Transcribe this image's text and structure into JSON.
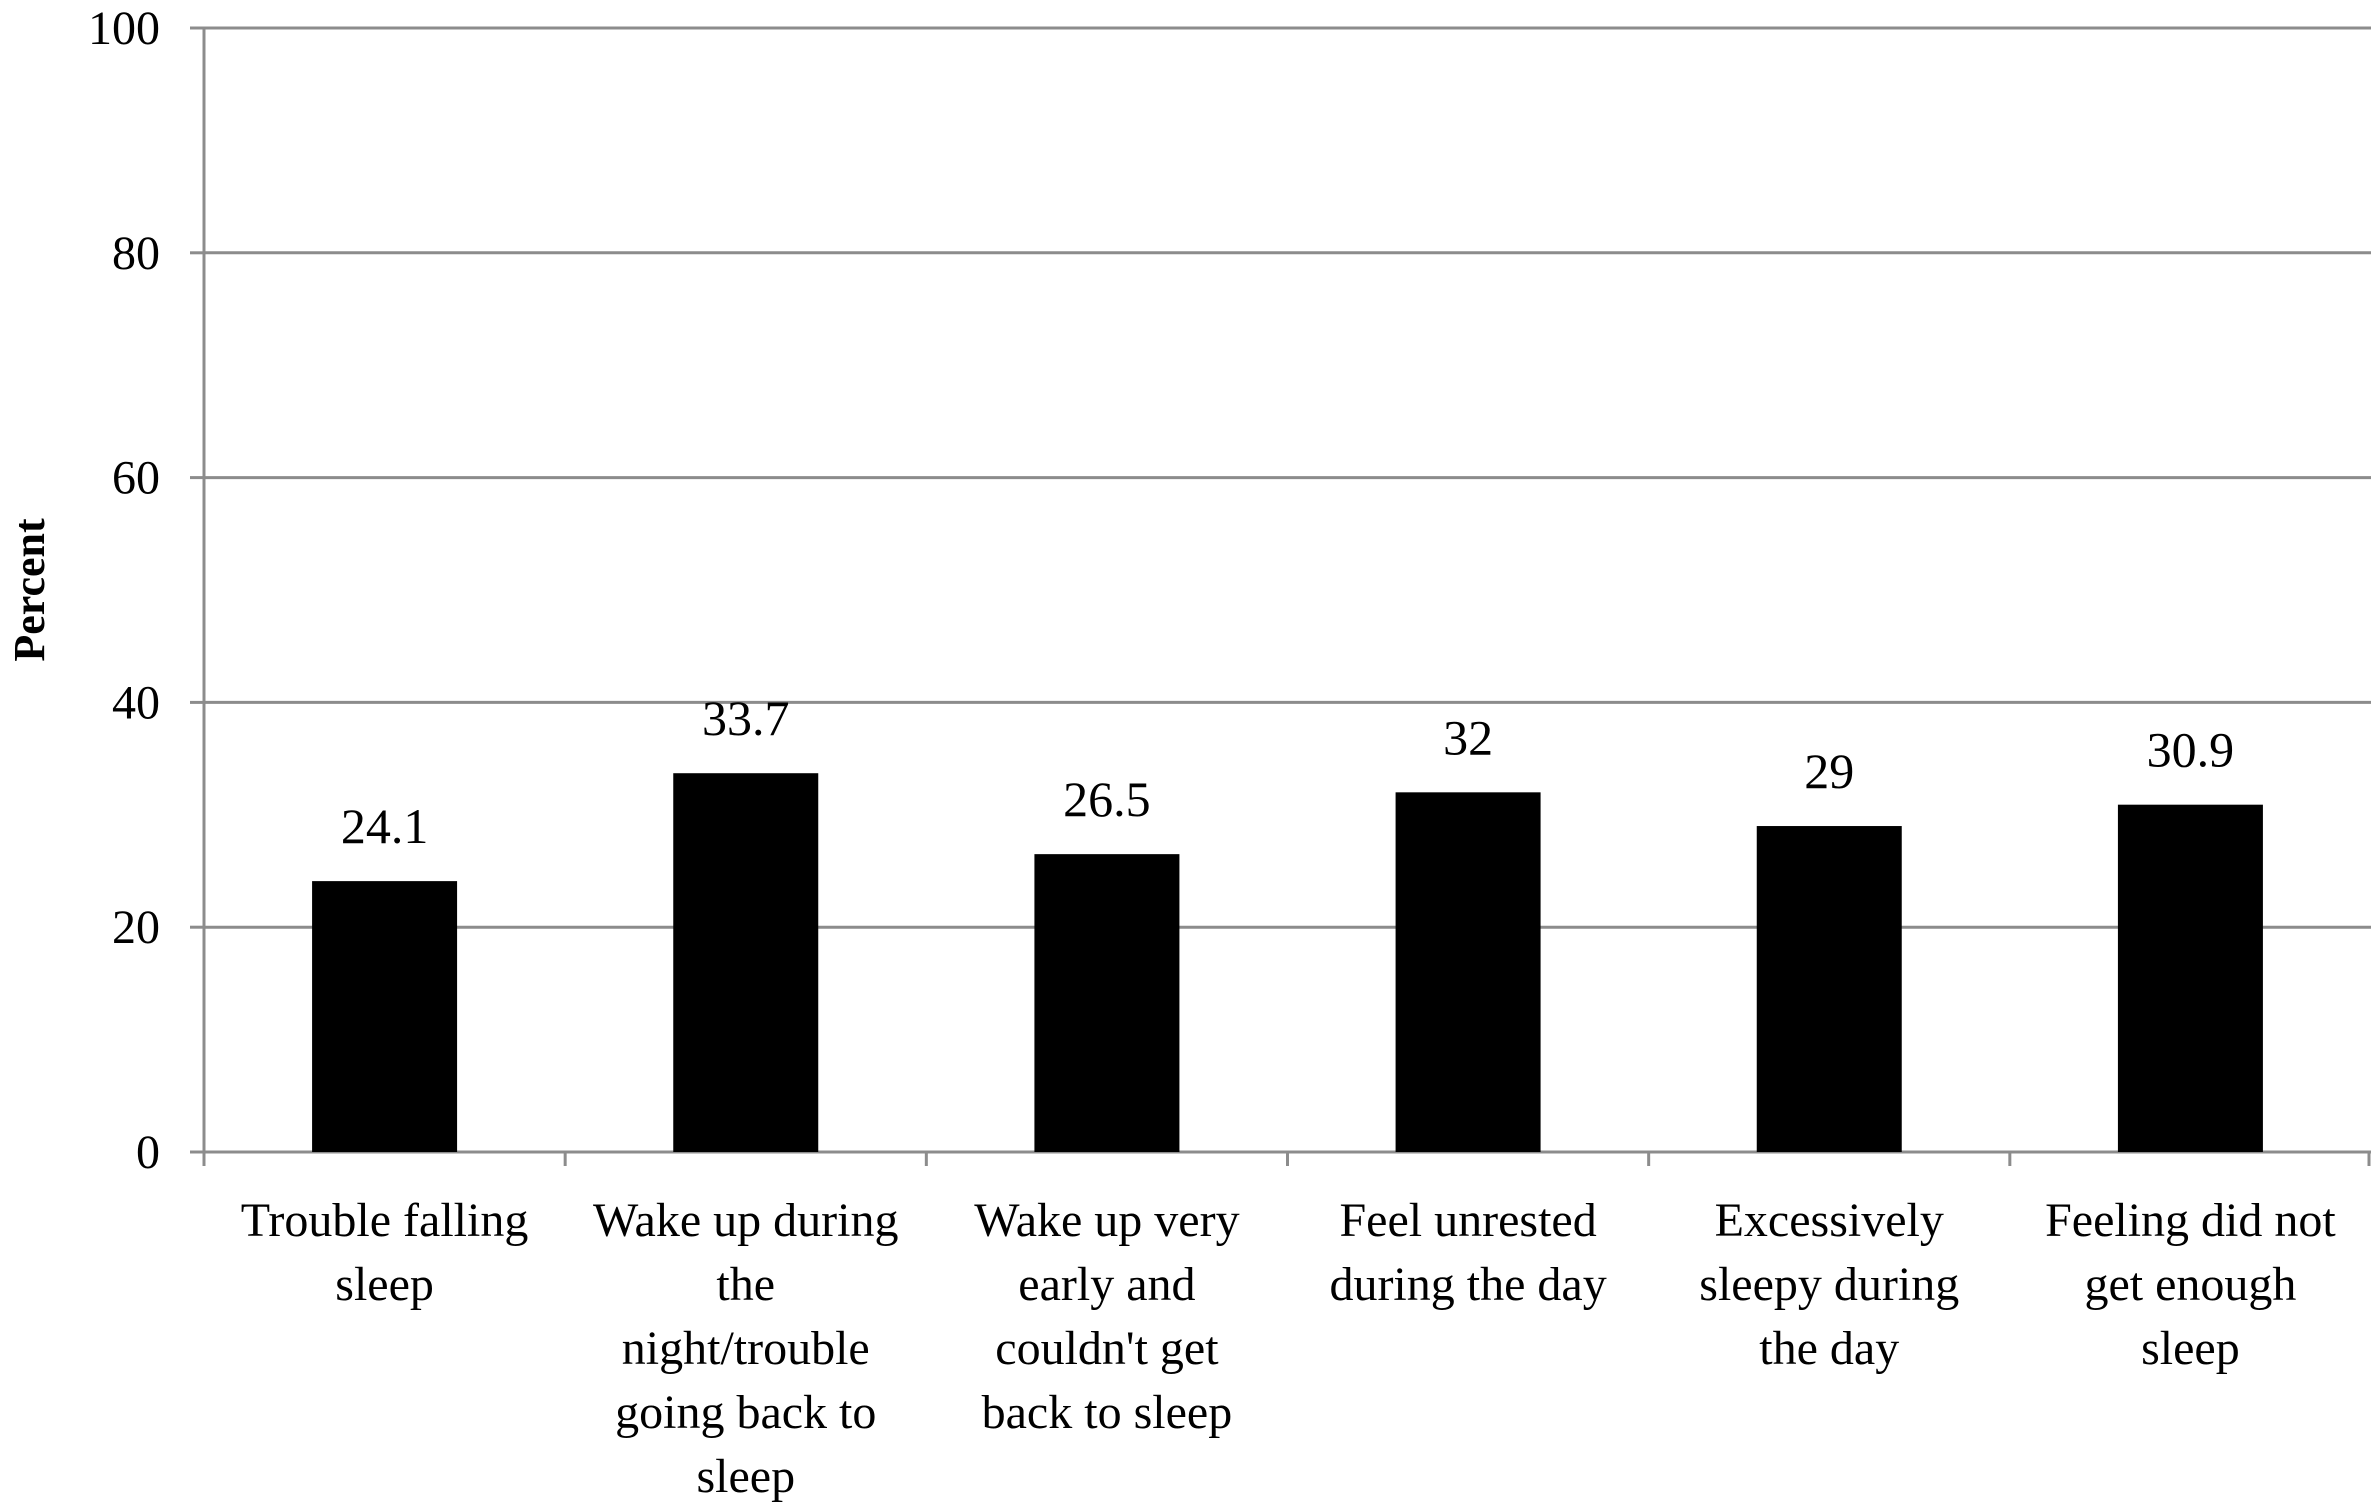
{
  "chart_data": {
    "type": "bar",
    "ylabel": "Percent",
    "ylim": [
      0,
      100
    ],
    "yticks": [
      0,
      20,
      40,
      60,
      80,
      100
    ],
    "grid": true,
    "categories": [
      [
        "Trouble falling",
        "sleep"
      ],
      [
        "Wake up during",
        "the",
        "night/trouble",
        "going back to",
        "sleep"
      ],
      [
        "Wake up very",
        "early and",
        "couldn't get",
        "back to sleep"
      ],
      [
        "Feel unrested",
        "during the day"
      ],
      [
        "Excessively",
        "sleepy during",
        "the day"
      ],
      [
        "Feeling did not",
        "get enough",
        "sleep"
      ]
    ],
    "values": [
      24.1,
      33.7,
      26.5,
      32,
      29,
      30.9
    ],
    "data_labels": [
      "24.1",
      "33.7",
      "26.5",
      "32",
      "29",
      "30.9"
    ],
    "colors": {
      "bar": "#000000",
      "grid": "#8c8c8c",
      "axis": "#8c8c8c"
    }
  }
}
